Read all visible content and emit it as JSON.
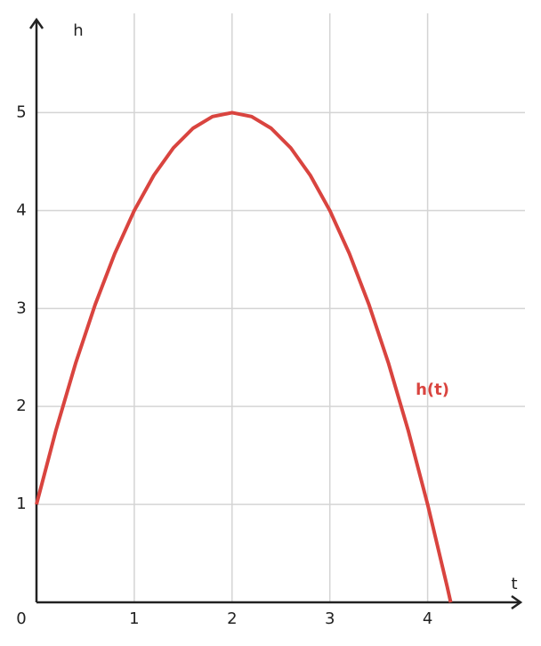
{
  "chart_data": {
    "type": "line",
    "x_label": "t",
    "y_label": "h",
    "x": [
      0,
      0.2,
      0.4,
      0.6,
      0.8,
      1.0,
      1.2,
      1.4,
      1.6,
      1.8,
      2.0,
      2.2,
      2.4,
      2.6,
      2.8,
      3.0,
      3.2,
      3.4,
      3.6,
      3.8,
      4.0,
      4.2,
      4.236
    ],
    "series": [
      {
        "name": "h(t)",
        "color": "#d9443f",
        "values": [
          1,
          1.76,
          2.44,
          3.04,
          3.56,
          4,
          4.36,
          4.64,
          4.84,
          4.96,
          5,
          4.96,
          4.84,
          4.64,
          4.36,
          4,
          3.56,
          3.04,
          2.44,
          1.76,
          1,
          0.16,
          0
        ]
      }
    ],
    "xlim": [
      0,
      4.95
    ],
    "ylim": [
      0,
      5.95
    ],
    "xticks": [
      0,
      1,
      2,
      3,
      4
    ],
    "yticks": [
      1,
      2,
      3,
      4,
      5
    ],
    "grid": true
  }
}
